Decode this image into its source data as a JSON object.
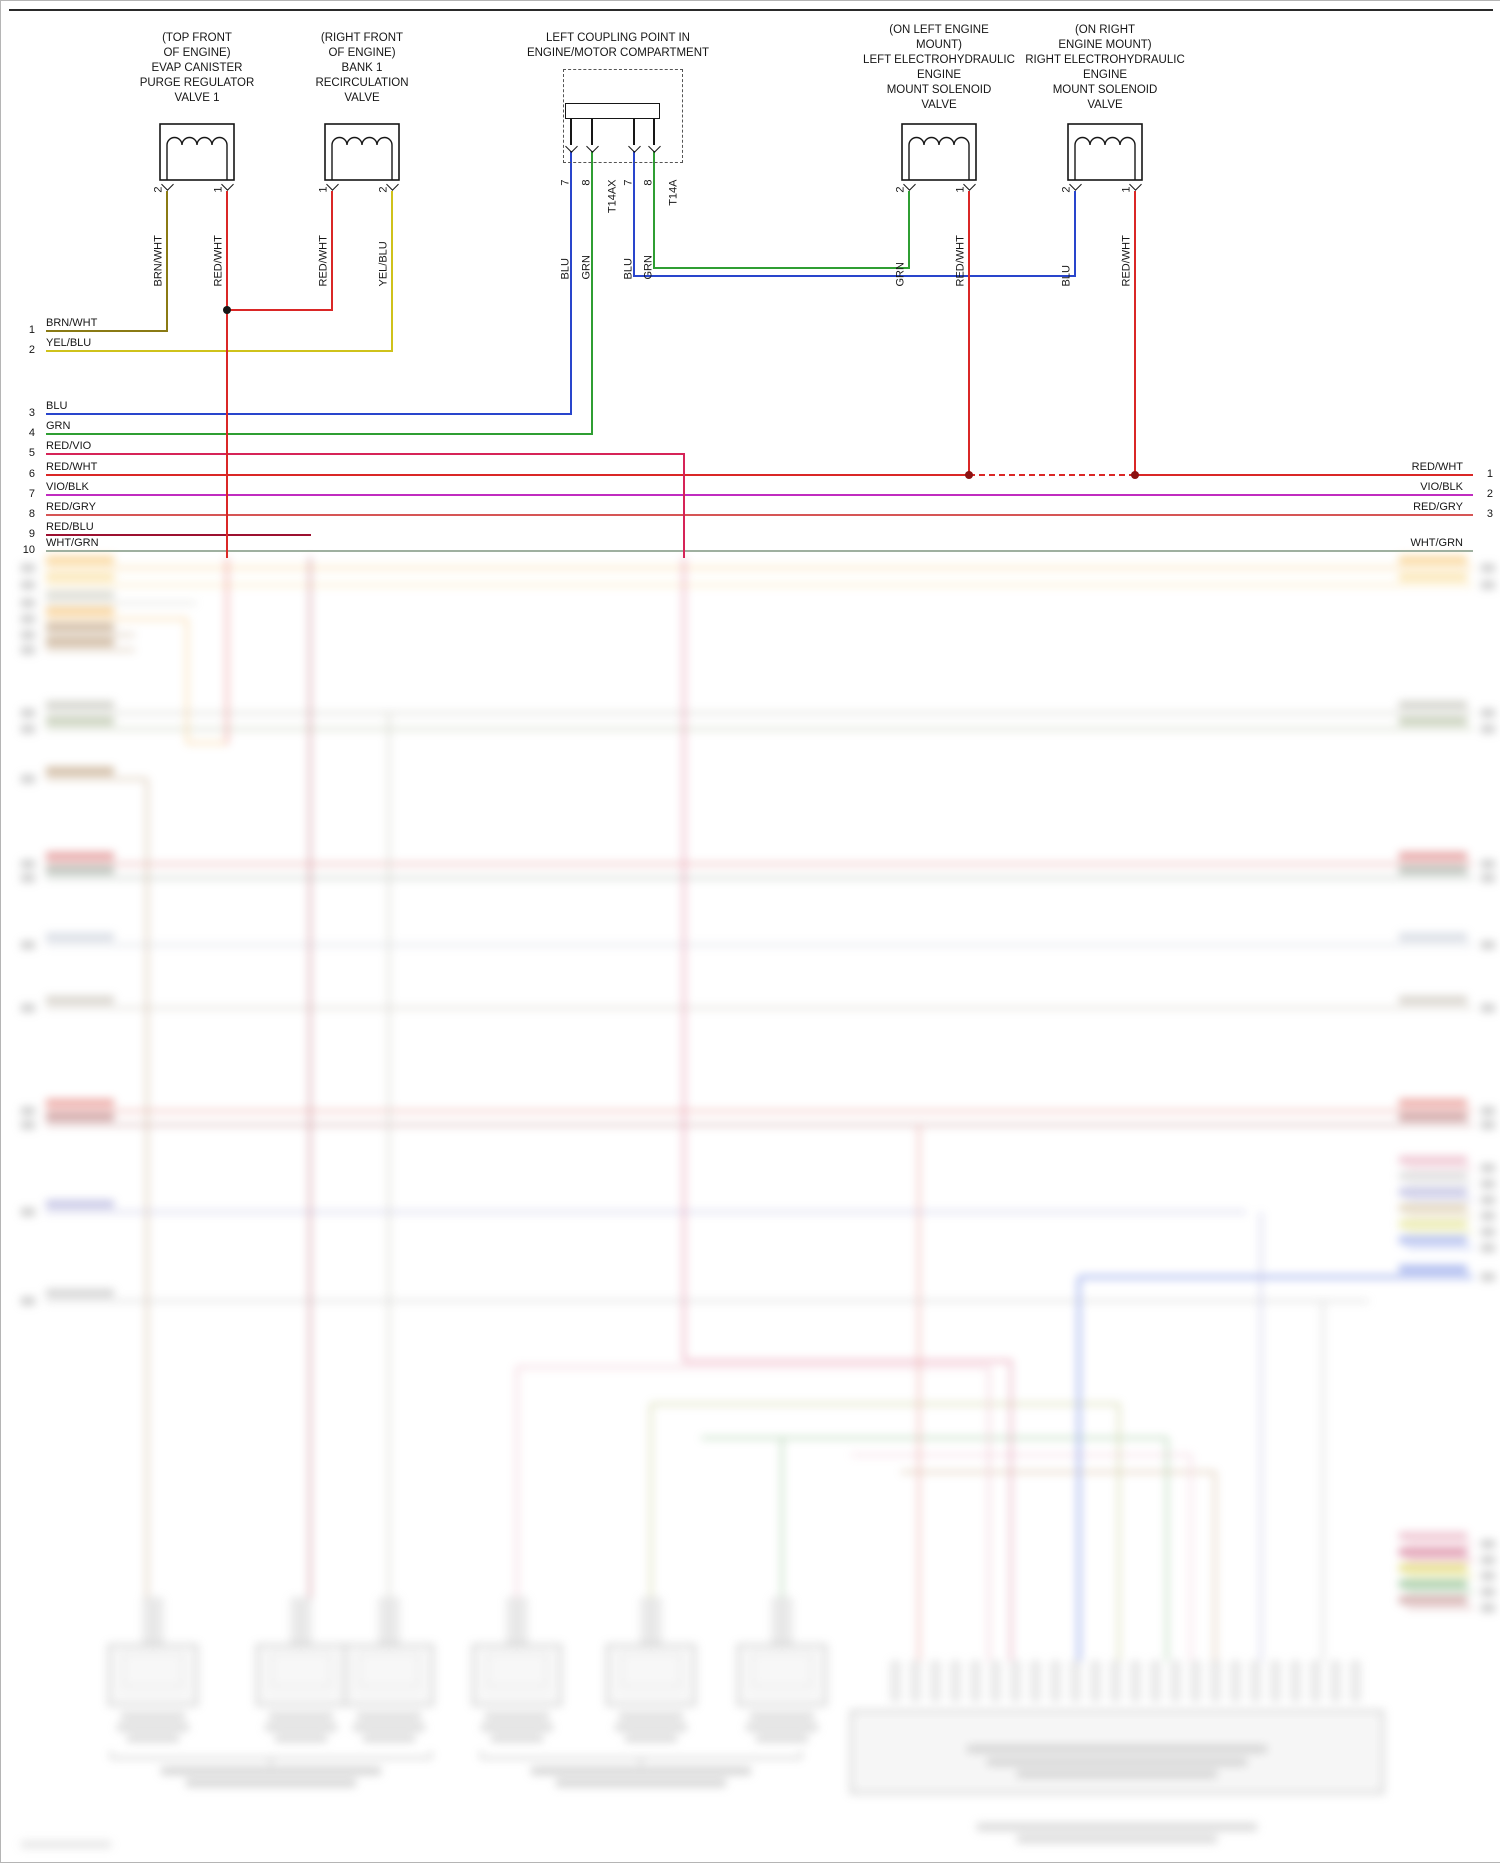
{
  "components": {
    "evap_valve": {
      "title": "(TOP FRONT\nOF ENGINE)\nEVAP CANISTER\nPURGE REGULATOR\nVALVE 1",
      "pins": [
        {
          "label": "BRN/WHT",
          "num": "2"
        },
        {
          "label": "RED/WHT",
          "num": "1"
        }
      ]
    },
    "recirc_valve": {
      "title": "(RIGHT FRONT\nOF ENGINE)\nBANK 1\nRECIRCULATION\nVALVE",
      "pins": [
        {
          "label": "RED/WHT",
          "num": "1"
        },
        {
          "label": "YEL/BLU",
          "num": "2"
        }
      ]
    },
    "coupling_point": {
      "title": "LEFT COUPLING POINT IN\nENGINE/MOTOR COMPARTMENT",
      "pins": [
        {
          "label": "BLU",
          "num": "7"
        },
        {
          "label": "GRN",
          "num": "8"
        },
        {
          "label": "T14AX",
          "num": ""
        },
        {
          "label": "BLU",
          "num": "7"
        },
        {
          "label": "GRN",
          "num": "8"
        },
        {
          "label": "T14A",
          "num": ""
        }
      ]
    },
    "left_mount_valve": {
      "title": "(ON LEFT ENGINE\nMOUNT)\nLEFT ELECTROHYDRAULIC\nENGINE\nMOUNT SOLENOID\nVALVE",
      "pins": [
        {
          "label": "GRN",
          "num": "2"
        },
        {
          "label": "RED/WHT",
          "num": "1"
        }
      ]
    },
    "right_mount_valve": {
      "title": "(ON RIGHT\nENGINE MOUNT)\nRIGHT ELECTROHYDRAULIC\nENGINE\nMOUNT SOLENOID\nVALVE",
      "pins": [
        {
          "label": "BLU",
          "num": "2"
        },
        {
          "label": "RED/WHT",
          "num": "1"
        }
      ]
    }
  },
  "rows_left": [
    {
      "num": "1",
      "label": "BRN/WHT"
    },
    {
      "num": "2",
      "label": "YEL/BLU"
    },
    {
      "num": "3",
      "label": "BLU"
    },
    {
      "num": "4",
      "label": "GRN"
    },
    {
      "num": "5",
      "label": "RED/VIO"
    },
    {
      "num": "6",
      "label": "RED/WHT"
    },
    {
      "num": "7",
      "label": "VIO/BLK"
    },
    {
      "num": "8",
      "label": "RED/GRY"
    },
    {
      "num": "9",
      "label": "RED/BLU"
    },
    {
      "num": "10",
      "label": "WHT/GRN"
    }
  ],
  "rows_right": [
    {
      "num": "1",
      "label": "RED/WHT"
    },
    {
      "num": "2",
      "label": "VIO/BLK"
    },
    {
      "num": "3",
      "label": "RED/GRY"
    },
    {
      "num": "",
      "label": "WHT/GRN"
    }
  ],
  "colors": {
    "brn_wht": "#8a7a14",
    "yel_blu": "#cfc21b",
    "red_wht": "#da2726",
    "blu": "#2945cc",
    "grn": "#2f9e33",
    "red_vio": "#d62458",
    "vio_blk": "#c02cc0",
    "red_gry": "#d65555",
    "red_blu": "#9c1030",
    "wht_grn": "#9fb0a0",
    "black": "#161616"
  }
}
